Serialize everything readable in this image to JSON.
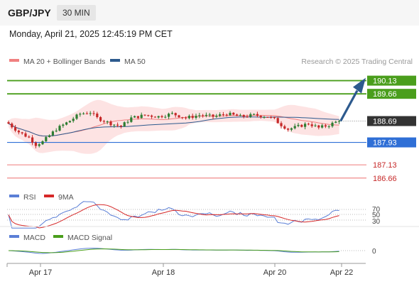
{
  "header": {
    "symbol": "GBP/JPY",
    "timeframe": "30 MIN"
  },
  "datetime": "Monday, April 21, 2025 12:45:19 PM CET",
  "legend": {
    "ma20": "MA 20 + Bollinger Bands",
    "ma50": "MA 50",
    "research": "Research © 2025 Trading Central",
    "rsi": "RSI",
    "rsi_ma": "9MA",
    "macd": "MACD",
    "macd_signal": "MACD Signal"
  },
  "colors": {
    "up": "#2e7d32",
    "down": "#c62828",
    "ma20": "#f08080",
    "ma50": "#2d5a8e",
    "band_fill": "#fde3e3",
    "green_level": "#4a9e1c",
    "blue_level": "#2f6fd6",
    "red_level": "#f08a8a",
    "current": "#333333",
    "arrow": "#2d5a8e",
    "rsi": "#5b7fd6",
    "rsi_ma": "#d62828",
    "macd": "#5b7fd6",
    "macd_signal": "#4a9e1c"
  },
  "chart_data": {
    "type": "candlestick",
    "y_range": [
      186.3,
      190.6
    ],
    "x_ticks": [
      "Apr 17",
      "Apr 18",
      "Apr 20",
      "Apr 22"
    ],
    "levels": [
      {
        "value": "190.13",
        "style": "green"
      },
      {
        "value": "189.66",
        "style": "green"
      },
      {
        "value": "188.69",
        "style": "current"
      },
      {
        "value": "187.93",
        "style": "blue"
      },
      {
        "value": "187.13",
        "style": "red"
      },
      {
        "value": "186.66",
        "style": "red"
      }
    ],
    "close_path": [
      [
        0,
        188.6
      ],
      [
        3,
        188.3
      ],
      [
        6,
        188.1
      ],
      [
        8,
        187.85
      ],
      [
        10,
        187.95
      ],
      [
        14,
        188.4
      ],
      [
        18,
        188.7
      ],
      [
        21,
        188.95
      ],
      [
        24,
        189.0
      ],
      [
        26,
        188.8
      ],
      [
        30,
        188.6
      ],
      [
        33,
        188.5
      ],
      [
        36,
        188.8
      ],
      [
        40,
        188.9
      ],
      [
        44,
        188.85
      ],
      [
        48,
        188.95
      ],
      [
        52,
        188.8
      ],
      [
        56,
        188.9
      ],
      [
        60,
        188.85
      ],
      [
        64,
        188.95
      ],
      [
        68,
        188.85
      ],
      [
        72,
        188.9
      ],
      [
        76,
        188.85
      ],
      [
        78,
        188.75
      ],
      [
        80,
        188.55
      ],
      [
        82,
        188.4
      ],
      [
        85,
        188.5
      ],
      [
        88,
        188.6
      ],
      [
        91,
        188.45
      ],
      [
        94,
        188.55
      ],
      [
        96,
        188.65
      ],
      [
        97,
        188.69
      ]
    ],
    "rsi": {
      "levels": [
        "70",
        "50",
        "30"
      ]
    },
    "macd": {
      "levels": [
        "0"
      ]
    }
  }
}
